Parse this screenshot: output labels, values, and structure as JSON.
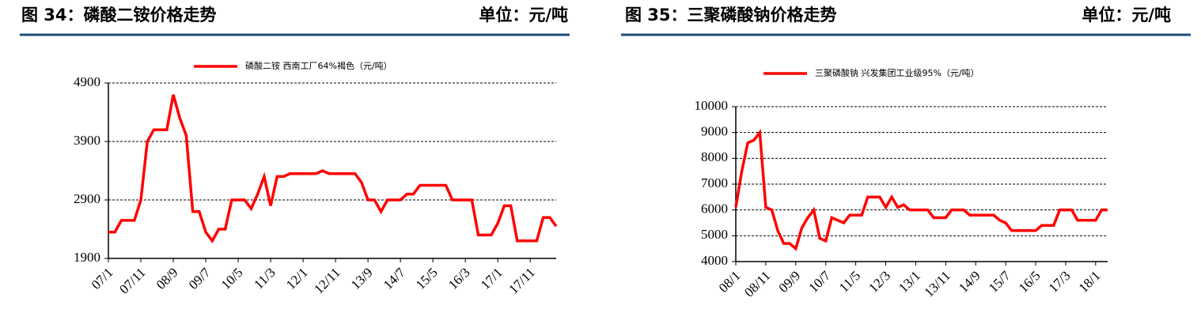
{
  "chart_data": [
    {
      "type": "line",
      "title": "图 34：磷酸二铵价格走势",
      "unit": "单位：元/吨",
      "categories": [
        "07/1",
        null,
        null,
        null,
        null,
        "07/11",
        null,
        null,
        null,
        null,
        "08/9",
        null,
        null,
        null,
        null,
        "09/7",
        null,
        null,
        null,
        null,
        "10/5",
        null,
        null,
        null,
        null,
        "11/3",
        null,
        null,
        null,
        null,
        "12/1",
        null,
        null,
        null,
        null,
        "12/11",
        null,
        null,
        null,
        null,
        "13/9",
        null,
        null,
        null,
        null,
        "14/7",
        null,
        null,
        null,
        null,
        "15/5",
        null,
        null,
        null,
        null,
        "16/3",
        null,
        null,
        null,
        null,
        "17/1",
        null,
        null,
        null,
        null,
        "17/11",
        null,
        null,
        null,
        null
      ],
      "series": [
        {
          "name": "磷酸二铵 西南工厂64%褐色（元/吨）",
          "color": "#ff0000",
          "values": [
            2350,
            2350,
            2550,
            2550,
            2550,
            2900,
            3900,
            4100,
            4100,
            4100,
            4700,
            4300,
            4000,
            2700,
            2700,
            2350,
            2200,
            2400,
            2400,
            2900,
            2900,
            2900,
            2750,
            3000,
            3300,
            2800,
            3300,
            3300,
            3350,
            3350,
            3350,
            3350,
            3350,
            3400,
            3350,
            3350,
            3350,
            3350,
            3350,
            3200,
            2900,
            2900,
            2700,
            2900,
            2900,
            2900,
            3000,
            3000,
            3150,
            3150,
            3150,
            3150,
            3150,
            2900,
            2900,
            2900,
            2900,
            2300,
            2300,
            2300,
            2500,
            2800,
            2800,
            2200,
            2200,
            2200,
            2200,
            2600,
            2600,
            2450
          ]
        }
      ],
      "ylim": [
        1900,
        4900
      ],
      "yticks": [
        1900,
        2900,
        3900,
        4900
      ],
      "grid": true
    },
    {
      "type": "line",
      "title": "图 35：三聚磷酸钠价格走势",
      "unit": "单位：元/吨",
      "categories": [
        "08/1",
        null,
        null,
        null,
        null,
        "08/11",
        null,
        null,
        null,
        null,
        "09/9",
        null,
        null,
        null,
        null,
        "10/7",
        null,
        null,
        null,
        null,
        "11/5",
        null,
        null,
        null,
        null,
        "12/3",
        null,
        null,
        null,
        null,
        "13/1",
        null,
        null,
        null,
        null,
        "13/11",
        null,
        null,
        null,
        null,
        "14/9",
        null,
        null,
        null,
        null,
        "15/7",
        null,
        null,
        null,
        null,
        "16/5",
        null,
        null,
        null,
        null,
        "17/3",
        null,
        null,
        null,
        null,
        "18/1",
        null,
        null
      ],
      "series": [
        {
          "name": "三聚磷酸钠 兴发集团工业级95%（元/吨）",
          "color": "#ff0000",
          "values": [
            6100,
            7500,
            8600,
            8700,
            9000,
            6100,
            6000,
            5200,
            4700,
            4700,
            4500,
            5300,
            5700,
            6000,
            4900,
            4800,
            5700,
            5600,
            5500,
            5800,
            5800,
            5800,
            6500,
            6500,
            6500,
            6100,
            6500,
            6100,
            6200,
            6000,
            6000,
            6000,
            6000,
            5700,
            5700,
            5700,
            6000,
            6000,
            6000,
            5800,
            5800,
            5800,
            5800,
            5800,
            5600,
            5500,
            5200,
            5200,
            5200,
            5200,
            5200,
            5400,
            5400,
            5400,
            6000,
            6000,
            6000,
            5600,
            5600,
            5600,
            5600,
            6000,
            6000
          ]
        }
      ],
      "ylim": [
        4000,
        10000
      ],
      "yticks": [
        4000,
        5000,
        6000,
        7000,
        8000,
        9000,
        10000
      ],
      "grid": true
    }
  ]
}
